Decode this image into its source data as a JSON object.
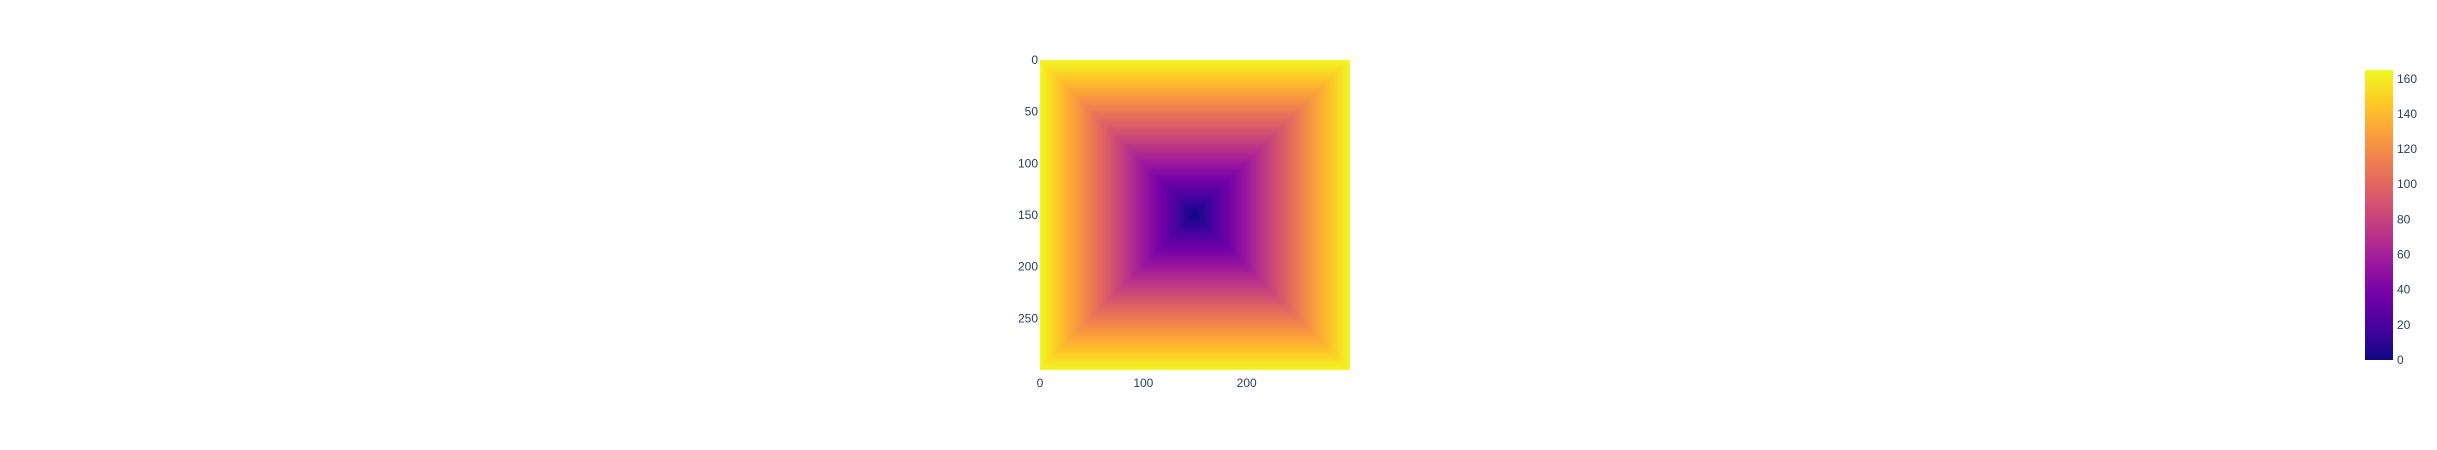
{
  "chart_data": {
    "type": "heatmap",
    "title": "",
    "xlabel": "",
    "ylabel": "",
    "description_of_values": "z = Chebyshev distance from center (150,150) times ~1.1, square rings",
    "x_range": [
      0,
      300
    ],
    "y_range": [
      0,
      300
    ],
    "x_ticks": [
      "0",
      "100",
      "200"
    ],
    "x_tick_values": [
      0,
      100,
      200
    ],
    "y_ticks": [
      "0",
      "50",
      "100",
      "150",
      "200",
      "250"
    ],
    "y_tick_values": [
      0,
      50,
      100,
      150,
      200,
      250
    ],
    "y_reversed": true,
    "center": [
      150,
      150
    ],
    "z_range": [
      0,
      165
    ],
    "colorscale_name": "Plasma",
    "colorscale": [
      "#0d0887",
      "#46039f",
      "#7201a8",
      "#9c179e",
      "#bd3786",
      "#d8576b",
      "#ed7953",
      "#fb9f3a",
      "#fdca26",
      "#f0f921"
    ],
    "colorbar_ticks": [
      "0",
      "20",
      "40",
      "60",
      "80",
      "100",
      "120",
      "140",
      "160"
    ],
    "colorbar_tick_values": [
      0,
      20,
      40,
      60,
      80,
      100,
      120,
      140,
      160
    ],
    "grid": false,
    "colorbar_position": "right"
  }
}
